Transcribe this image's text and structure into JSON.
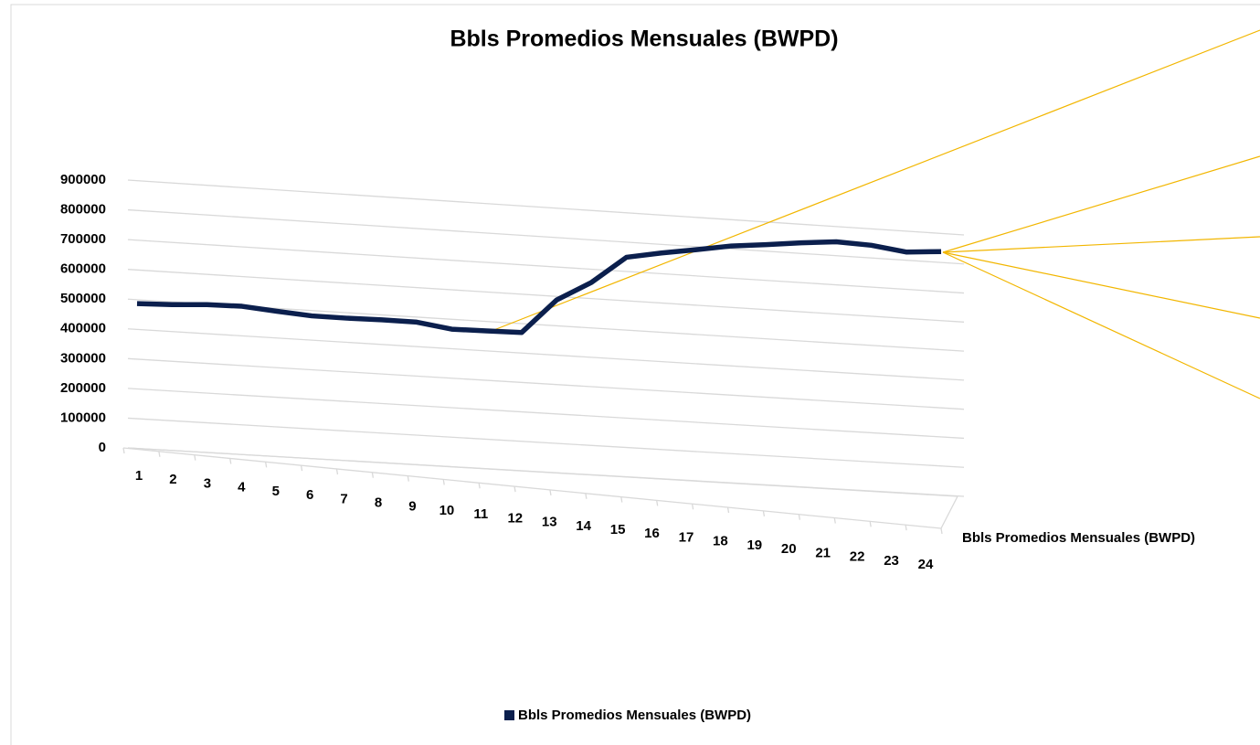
{
  "chart_data": {
    "type": "line",
    "title": "Bbls Promedios Mensuales (BWPD)",
    "categories": [
      1,
      2,
      3,
      4,
      5,
      6,
      7,
      8,
      9,
      10,
      11,
      12,
      13,
      14,
      15,
      16,
      17,
      18,
      19,
      20,
      21,
      22,
      23,
      24
    ],
    "series": [
      {
        "name": "Bbls Promedios Mensuales (BWPD)",
        "color": "#0b1f4d",
        "values": [
          485000,
          482000,
          483000,
          478000,
          462000,
          447000,
          440000,
          435000,
          428000,
          405000,
          400000,
          395000,
          505000,
          565000,
          650000,
          665000,
          677000,
          690000,
          695000,
          702000,
          706000,
          695000,
          673000,
          675000
        ]
      }
    ],
    "ylim": [
      0,
      900000
    ],
    "yticks": [
      0,
      100000,
      200000,
      300000,
      400000,
      500000,
      600000,
      700000,
      800000,
      900000
    ],
    "grid": true,
    "legend": "bottom"
  }
}
